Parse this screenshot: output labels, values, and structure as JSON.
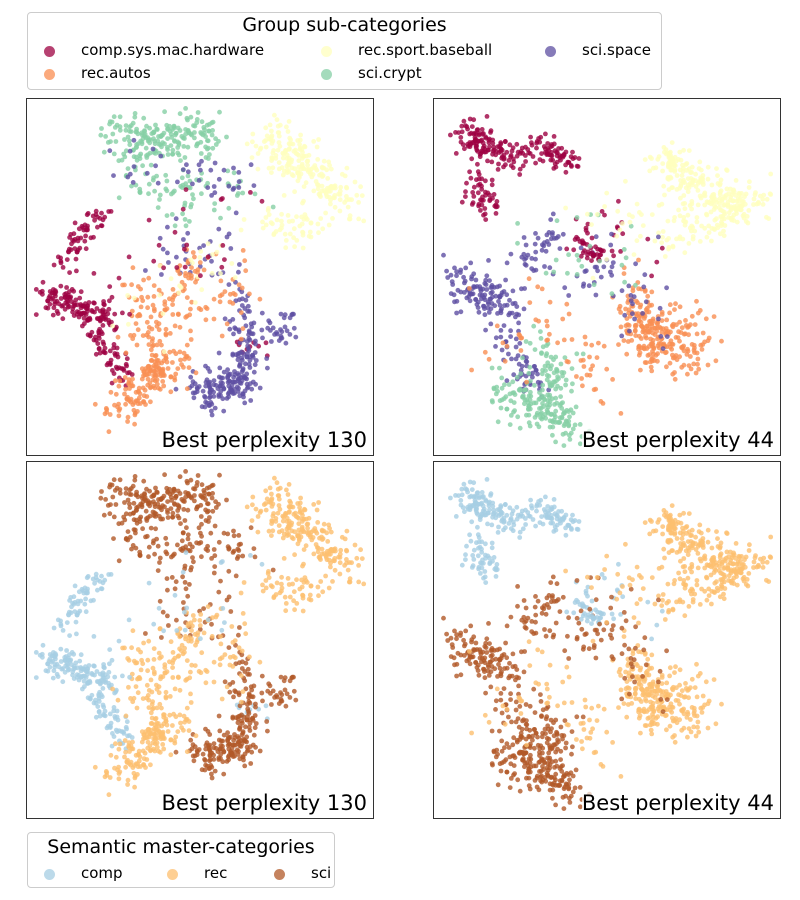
{
  "chart_data": {
    "type": "scatter",
    "top_legend": {
      "title": "Group sub-categories",
      "placement": "top",
      "items": [
        {
          "label": "comp.sys.mac.hardware",
          "color": "#9e0142"
        },
        {
          "label": "rec.autos",
          "color": "#f98e52"
        },
        {
          "label": "rec.sport.baseball",
          "color": "#ffffbe"
        },
        {
          "label": "sci.crypt",
          "color": "#86cfa5"
        },
        {
          "label": "sci.space",
          "color": "#5e4fa2"
        }
      ]
    },
    "bottom_legend": {
      "title": "Semantic master-categories",
      "placement": "bottom-left",
      "items": [
        {
          "label": "comp",
          "color": "#a6cee3"
        },
        {
          "label": "rec",
          "color": "#fdbf6f"
        },
        {
          "label": "sci",
          "color": "#b15928"
        }
      ]
    },
    "master_map": {
      "comp.sys.mac.hardware": "comp",
      "rec.autos": "rec",
      "rec.sport.baseball": "rec",
      "sci.crypt": "sci",
      "sci.space": "sci"
    },
    "xlim": [
      0,
      100
    ],
    "ylim": [
      0,
      100
    ],
    "panels": [
      {
        "caption": "Best perplexity 130",
        "coloring": "sub-categories",
        "embedding": "p130",
        "clusters": [
          {
            "group": "comp.sys.mac.hardware",
            "n": 140,
            "path": [
              [
                4,
                45
              ],
              [
                10,
                43
              ],
              [
                18,
                40
              ],
              [
                25,
                37
              ]
            ],
            "spread": 2.5
          },
          {
            "group": "comp.sys.mac.hardware",
            "n": 60,
            "path": [
              [
                8,
                54
              ],
              [
                14,
                62
              ],
              [
                20,
                68
              ]
            ],
            "spread": 2.0
          },
          {
            "group": "comp.sys.mac.hardware",
            "n": 55,
            "path": [
              [
                18,
                34
              ],
              [
                24,
                26
              ],
              [
                28,
                20
              ]
            ],
            "spread": 2.0
          },
          {
            "group": "comp.sys.mac.hardware",
            "n": 10,
            "path": [
              [
                60,
                28
              ],
              [
                70,
                30
              ]
            ],
            "spread": 1.5
          },
          {
            "group": "rec.sport.baseball",
            "n": 220,
            "path": [
              [
                70,
                92
              ],
              [
                78,
                84
              ],
              [
                86,
                78
              ],
              [
                95,
                72
              ]
            ],
            "spread": 3.5
          },
          {
            "group": "rec.sport.baseball",
            "n": 50,
            "path": [
              [
                70,
                66
              ],
              [
                78,
                64
              ],
              [
                86,
                66
              ]
            ],
            "spread": 3.0
          },
          {
            "group": "sci.crypt",
            "n": 200,
            "path": [
              [
                25,
                92
              ],
              [
                35,
                88
              ],
              [
                45,
                90
              ],
              [
                52,
                93
              ]
            ],
            "spread": 3.5
          },
          {
            "group": "sci.crypt",
            "n": 60,
            "path": [
              [
                30,
                80
              ],
              [
                40,
                74
              ],
              [
                50,
                70
              ]
            ],
            "spread": 4.0
          },
          {
            "group": "sci.crypt",
            "n": 15,
            "path": [
              [
                55,
                78
              ],
              [
                65,
                74
              ]
            ],
            "spread": 4.0
          },
          {
            "group": "sci.space",
            "n": 160,
            "path": [
              [
                48,
                18
              ],
              [
                56,
                16
              ],
              [
                62,
                20
              ],
              [
                64,
                28
              ]
            ],
            "spread": 3.0
          },
          {
            "group": "sci.space",
            "n": 50,
            "path": [
              [
                64,
                26
              ],
              [
                64,
                35
              ],
              [
                64,
                45
              ]
            ],
            "spread": 2.5
          },
          {
            "group": "sci.space",
            "n": 30,
            "path": [
              [
                70,
                34
              ],
              [
                75,
                36
              ],
              [
                78,
                32
              ]
            ],
            "spread": 2.5
          },
          {
            "group": "sci.space",
            "n": 40,
            "path": [
              [
                25,
                85
              ],
              [
                40,
                80
              ],
              [
                55,
                78
              ],
              [
                63,
                72
              ]
            ],
            "spread": 4.0
          },
          {
            "group": "sci.space",
            "n": 35,
            "path": [
              [
                40,
                60
              ],
              [
                50,
                55
              ],
              [
                60,
                50
              ]
            ],
            "spread": 5.0
          },
          {
            "group": "rec.autos",
            "n": 160,
            "path": [
              [
                25,
                10
              ],
              [
                30,
                18
              ],
              [
                38,
                22
              ],
              [
                45,
                26
              ]
            ],
            "spread": 3.0
          },
          {
            "group": "rec.autos",
            "n": 80,
            "path": [
              [
                35,
                30
              ],
              [
                40,
                40
              ],
              [
                45,
                48
              ],
              [
                50,
                56
              ]
            ],
            "spread": 3.0
          },
          {
            "group": "rec.autos",
            "n": 40,
            "path": [
              [
                35,
                28
              ],
              [
                32,
                40
              ],
              [
                30,
                50
              ]
            ],
            "spread": 3.5
          },
          {
            "group": "rec.autos",
            "n": 30,
            "path": [
              [
                55,
                40
              ],
              [
                60,
                45
              ],
              [
                62,
                50
              ]
            ],
            "spread": 4.0
          },
          {
            "group": "rec.sport.baseball",
            "n": 30,
            "path": [
              [
                35,
                40
              ],
              [
                45,
                50
              ],
              [
                55,
                55
              ],
              [
                65,
                58
              ]
            ],
            "spread": 6.0
          },
          {
            "group": "comp.sys.mac.hardware",
            "n": 25,
            "path": [
              [
                20,
                50
              ],
              [
                35,
                55
              ],
              [
                50,
                60
              ],
              [
                60,
                70
              ]
            ],
            "spread": 7.0
          }
        ]
      },
      {
        "caption": "Best perplexity 44",
        "coloring": "sub-categories",
        "embedding": "p44",
        "clusters": [
          {
            "group": "comp.sys.mac.hardware",
            "n": 130,
            "path": [
              [
                7,
                93
              ],
              [
                12,
                88
              ],
              [
                18,
                86
              ],
              [
                25,
                84
              ]
            ],
            "spread": 2.5
          },
          {
            "group": "comp.sys.mac.hardware",
            "n": 70,
            "path": [
              [
                28,
                88
              ],
              [
                35,
                86
              ],
              [
                40,
                83
              ]
            ],
            "spread": 2.0
          },
          {
            "group": "comp.sys.mac.hardware",
            "n": 50,
            "path": [
              [
                10,
                80
              ],
              [
                12,
                74
              ],
              [
                15,
                70
              ]
            ],
            "spread": 2.5
          },
          {
            "group": "comp.sys.mac.hardware",
            "n": 20,
            "path": [
              [
                40,
                70
              ],
              [
                50,
                62
              ],
              [
                60,
                58
              ]
            ],
            "spread": 5.0
          },
          {
            "group": "rec.sport.baseball",
            "n": 200,
            "path": [
              [
                66,
                86
              ],
              [
                72,
                80
              ],
              [
                80,
                74
              ],
              [
                90,
                70
              ]
            ],
            "spread": 3.0
          },
          {
            "group": "rec.sport.baseball",
            "n": 120,
            "path": [
              [
                66,
                62
              ],
              [
                76,
                64
              ],
              [
                86,
                68
              ],
              [
                96,
                74
              ]
            ],
            "spread": 3.0
          },
          {
            "group": "sci.space",
            "n": 120,
            "path": [
              [
                5,
                50
              ],
              [
                10,
                46
              ],
              [
                15,
                44
              ],
              [
                22,
                42
              ]
            ],
            "spread": 3.0
          },
          {
            "group": "sci.space",
            "n": 60,
            "path": [
              [
                18,
                34
              ],
              [
                22,
                28
              ],
              [
                25,
                22
              ],
              [
                28,
                18
              ]
            ],
            "spread": 2.5
          },
          {
            "group": "sci.space",
            "n": 40,
            "path": [
              [
                25,
                55
              ],
              [
                30,
                58
              ],
              [
                35,
                62
              ]
            ],
            "spread": 3.0
          },
          {
            "group": "sci.crypt",
            "n": 160,
            "path": [
              [
                18,
                18
              ],
              [
                26,
                14
              ],
              [
                33,
                10
              ],
              [
                40,
                6
              ]
            ],
            "spread": 3.0
          },
          {
            "group": "sci.crypt",
            "n": 60,
            "path": [
              [
                30,
                30
              ],
              [
                33,
                24
              ],
              [
                36,
                18
              ]
            ],
            "spread": 3.0
          },
          {
            "group": "rec.autos",
            "n": 140,
            "path": [
              [
                55,
                38
              ],
              [
                62,
                34
              ],
              [
                70,
                30
              ],
              [
                78,
                26
              ]
            ],
            "spread": 3.0
          },
          {
            "group": "rec.autos",
            "n": 80,
            "path": [
              [
                58,
                48
              ],
              [
                60,
                40
              ],
              [
                62,
                32
              ],
              [
                64,
                24
              ]
            ],
            "spread": 3.0
          },
          {
            "group": "rec.autos",
            "n": 40,
            "path": [
              [
                70,
                40
              ],
              [
                75,
                36
              ],
              [
                80,
                34
              ]
            ],
            "spread": 3.0
          },
          {
            "group": "rec.autos",
            "n": 30,
            "path": [
              [
                42,
                30
              ],
              [
                45,
                22
              ],
              [
                48,
                14
              ]
            ],
            "spread": 4.0
          },
          {
            "group": "rec.autos",
            "n": 30,
            "path": [
              [
                15,
                30
              ],
              [
                25,
                34
              ],
              [
                35,
                40
              ]
            ],
            "spread": 6.0
          },
          {
            "group": "sci.space",
            "n": 50,
            "path": [
              [
                40,
                55
              ],
              [
                50,
                48
              ],
              [
                58,
                44
              ],
              [
                62,
                38
              ]
            ],
            "spread": 6.0
          },
          {
            "group": "comp.sys.mac.hardware",
            "n": 40,
            "path": [
              [
                40,
                60
              ],
              [
                45,
                58
              ],
              [
                48,
                56
              ]
            ],
            "spread": 1.5
          },
          {
            "group": "sci.crypt",
            "n": 25,
            "path": [
              [
                30,
                65
              ],
              [
                45,
                60
              ],
              [
                55,
                55
              ]
            ],
            "spread": 7.0
          },
          {
            "group": "rec.sport.baseball",
            "n": 25,
            "path": [
              [
                40,
                60
              ],
              [
                55,
                65
              ],
              [
                60,
                62
              ]
            ],
            "spread": 6.0
          }
        ]
      },
      {
        "caption": "Best perplexity 130",
        "coloring": "master-categories",
        "embedding": "p130"
      },
      {
        "caption": "Best perplexity 44",
        "coloring": "master-categories",
        "embedding": "p44"
      }
    ]
  }
}
